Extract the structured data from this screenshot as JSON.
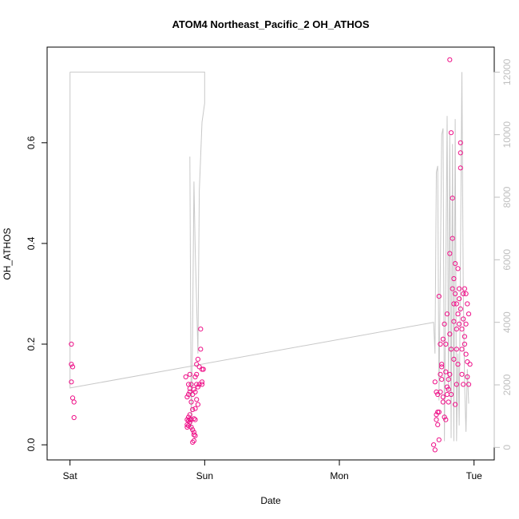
{
  "chart_data": {
    "type": "scatter",
    "title": "ATOM4 Northeast_Pacific_2 OH_ATHOS",
    "xlabel": "Date",
    "ylabel": "OH_ATHOS",
    "x_ticks": [
      {
        "label": "Sat",
        "value": 0
      },
      {
        "label": "Sun",
        "value": 1
      },
      {
        "label": "Mon",
        "value": 2
      },
      {
        "label": "Tue",
        "value": 3
      }
    ],
    "xlim": [
      -0.17,
      3.15
    ],
    "y_ticks": [
      0.0,
      0.2,
      0.4,
      0.6
    ],
    "y_tick_labels": [
      "0.0",
      "0.2",
      "0.4",
      "0.6"
    ],
    "ylim": [
      -0.03,
      0.79
    ],
    "y2_ticks": [
      0,
      2000,
      4000,
      6000,
      8000,
      10000,
      12000
    ],
    "y2_tick_labels": [
      "0",
      "2000",
      "4000",
      "6000",
      "8000",
      "10000",
      "12000"
    ],
    "y2lim": [
      -400,
      12800
    ],
    "grid": false,
    "legend": "none",
    "colors": {
      "points": "#ee1188",
      "line": "#c8c8c8",
      "right_axis": "#bfbfbf"
    },
    "series": [
      {
        "kind": "points",
        "axis": "left",
        "x": [
          0.01,
          0.01,
          0.01,
          0.02,
          0.02,
          0.03,
          0.03,
          0.86,
          0.87,
          0.87,
          0.87,
          0.87,
          0.88,
          0.88,
          0.88,
          0.88,
          0.88,
          0.89,
          0.89,
          0.89,
          0.89,
          0.89,
          0.89,
          0.9,
          0.9,
          0.9,
          0.9,
          0.91,
          0.91,
          0.91,
          0.91,
          0.92,
          0.92,
          0.92,
          0.92,
          0.92,
          0.93,
          0.93,
          0.93,
          0.93,
          0.93,
          0.94,
          0.94,
          0.94,
          0.94,
          0.95,
          0.95,
          0.95,
          0.96,
          0.96,
          0.97,
          0.97,
          0.98,
          0.98,
          0.98,
          0.99,
          2.7,
          2.71,
          2.71,
          2.72,
          2.72,
          2.72,
          2.73,
          2.73,
          2.73,
          2.74,
          2.74,
          2.74,
          2.75,
          2.75,
          2.75,
          2.76,
          2.76,
          2.76,
          2.77,
          2.77,
          2.77,
          2.78,
          2.78,
          2.79,
          2.79,
          2.79,
          2.8,
          2.8,
          2.8,
          2.81,
          2.81,
          2.81,
          2.82,
          2.82,
          2.82,
          2.82,
          2.83,
          2.83,
          2.83,
          2.84,
          2.84,
          2.84,
          2.85,
          2.85,
          2.85,
          2.85,
          2.86,
          2.86,
          2.86,
          2.87,
          2.87,
          2.87,
          2.87,
          2.88,
          2.88,
          2.88,
          2.89,
          2.89,
          2.89,
          2.9,
          2.9,
          2.9,
          2.9,
          2.91,
          2.91,
          2.91,
          2.92,
          2.92,
          2.92,
          2.93,
          2.93,
          2.93,
          2.94,
          2.94,
          2.94,
          2.95,
          2.95,
          2.95,
          2.96,
          2.96,
          2.97
        ],
        "y": [
          0.2,
          0.16,
          0.125,
          0.155,
          0.093,
          0.085,
          0.054,
          0.135,
          0.095,
          0.05,
          0.04,
          0.035,
          0.1,
          0.055,
          0.048,
          0.038,
          0.12,
          0.105,
          0.112,
          0.06,
          0.045,
          0.05,
          0.14,
          0.12,
          0.085,
          0.05,
          0.035,
          0.1,
          0.07,
          0.03,
          0.005,
          0.11,
          0.025,
          0.052,
          0.02,
          0.008,
          0.135,
          0.105,
          0.072,
          0.05,
          0.018,
          0.16,
          0.09,
          0.12,
          0.14,
          0.17,
          0.115,
          0.08,
          0.155,
          0.12,
          0.19,
          0.23,
          0.15,
          0.125,
          0.12,
          0.15,
          0.0,
          -0.01,
          0.125,
          0.105,
          0.06,
          0.05,
          0.1,
          0.04,
          0.065,
          0.295,
          0.01,
          0.065,
          0.2,
          0.14,
          0.105,
          0.155,
          0.16,
          0.13,
          0.085,
          0.095,
          0.21,
          0.24,
          0.055,
          0.05,
          0.145,
          0.2,
          0.26,
          0.115,
          0.1,
          0.11,
          0.085,
          0.13,
          0.38,
          0.22,
          0.765,
          0.14,
          0.62,
          0.19,
          0.1,
          0.49,
          0.31,
          0.41,
          0.245,
          0.28,
          0.33,
          0.17,
          0.36,
          0.3,
          0.08,
          0.23,
          0.19,
          0.28,
          0.12,
          0.35,
          0.26,
          0.16,
          0.24,
          0.31,
          0.29,
          0.55,
          0.6,
          0.58,
          0.27,
          0.19,
          0.14,
          0.23,
          0.12,
          0.3,
          0.25,
          0.31,
          0.215,
          0.2,
          0.18,
          0.3,
          0.24,
          0.135,
          0.28,
          0.165,
          0.26,
          0.12,
          0.16
        ]
      },
      {
        "kind": "line",
        "axis": "right",
        "points": [
          [
            0.0,
            12000
          ],
          [
            0.0,
            1900
          ],
          [
            2.7,
            4000
          ],
          [
            2.71,
            3000
          ],
          [
            2.72,
            8800
          ],
          [
            2.73,
            9000
          ],
          [
            2.74,
            1500
          ],
          [
            2.76,
            10000
          ],
          [
            2.77,
            10200
          ],
          [
            2.78,
            200
          ],
          [
            2.8,
            10600
          ],
          [
            2.81,
            1800
          ],
          [
            2.82,
            10000
          ],
          [
            2.83,
            300
          ],
          [
            2.84,
            9700
          ],
          [
            2.85,
            200
          ],
          [
            2.86,
            10500
          ],
          [
            2.87,
            200
          ],
          [
            2.88,
            3000
          ],
          [
            2.89,
            700
          ],
          [
            2.91,
            12000
          ],
          [
            2.92,
            5000
          ],
          [
            2.93,
            2000
          ],
          [
            2.94,
            500
          ],
          [
            2.95,
            2500
          ],
          [
            2.96,
            1400
          ]
        ]
      },
      {
        "kind": "line",
        "axis": "right",
        "points": [
          [
            0.0,
            12000
          ],
          [
            1.0,
            12000
          ],
          [
            1.0,
            11000
          ],
          [
            0.98,
            10400
          ],
          [
            0.96,
            8200
          ],
          [
            0.95,
            3000
          ],
          [
            0.93,
            6300
          ],
          [
            0.92,
            8500
          ],
          [
            0.91,
            3600
          ],
          [
            0.9,
            500
          ],
          [
            0.89,
            9300
          ]
        ]
      }
    ]
  }
}
